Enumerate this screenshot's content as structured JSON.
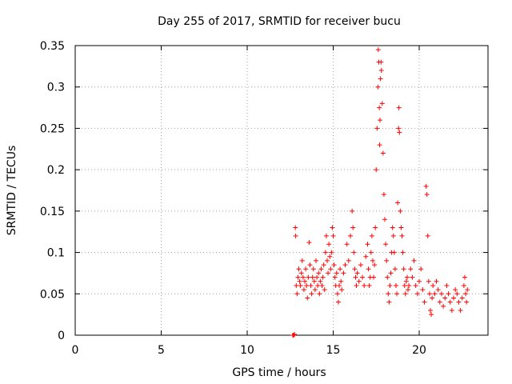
{
  "chart_data": {
    "type": "scatter",
    "title": "Day 255 of 2017, SRMTID for receiver bucu",
    "xlabel": "GPS time / hours",
    "ylabel": "SRMTID / TECUs",
    "xlim": [
      0,
      24
    ],
    "ylim": [
      0,
      0.35
    ],
    "xticks": [
      0,
      5,
      10,
      15,
      20
    ],
    "yticks": [
      0,
      0.05,
      0.1,
      0.15,
      0.2,
      0.25,
      0.3,
      0.35
    ],
    "xtick_labels": [
      "0",
      "5",
      "10",
      "15",
      "20"
    ],
    "ytick_labels": [
      "0",
      "0.05",
      "0.1",
      "0.15",
      "0.2",
      "0.25",
      "0.3",
      "0.35"
    ],
    "grid": true,
    "marker": "+",
    "color": "#ff0000",
    "series": [
      {
        "name": "SRMTID",
        "points": [
          [
            12.65,
            0.0
          ],
          [
            12.7,
            0.0
          ],
          [
            12.75,
            0.001
          ],
          [
            12.8,
            0.13
          ],
          [
            12.82,
            0.12
          ],
          [
            12.85,
            0.06
          ],
          [
            12.9,
            0.05
          ],
          [
            12.95,
            0.07
          ],
          [
            13.0,
            0.08
          ],
          [
            13.05,
            0.065
          ],
          [
            13.1,
            0.06
          ],
          [
            13.15,
            0.075
          ],
          [
            13.2,
            0.09
          ],
          [
            13.25,
            0.07
          ],
          [
            13.3,
            0.055
          ],
          [
            13.35,
            0.065
          ],
          [
            13.4,
            0.08
          ],
          [
            13.45,
            0.06
          ],
          [
            13.5,
            0.045
          ],
          [
            13.55,
            0.07
          ],
          [
            13.6,
            0.112
          ],
          [
            13.65,
            0.085
          ],
          [
            13.7,
            0.06
          ],
          [
            13.75,
            0.05
          ],
          [
            13.8,
            0.07
          ],
          [
            13.85,
            0.08
          ],
          [
            13.9,
            0.065
          ],
          [
            13.95,
            0.055
          ],
          [
            14.0,
            0.09
          ],
          [
            14.05,
            0.07
          ],
          [
            14.1,
            0.06
          ],
          [
            14.15,
            0.075
          ],
          [
            14.2,
            0.05
          ],
          [
            14.25,
            0.065
          ],
          [
            14.3,
            0.08
          ],
          [
            14.35,
            0.06
          ],
          [
            14.4,
            0.07
          ],
          [
            14.45,
            0.085
          ],
          [
            14.5,
            0.055
          ],
          [
            14.55,
            0.1
          ],
          [
            14.6,
            0.12
          ],
          [
            14.65,
            0.09
          ],
          [
            14.7,
            0.075
          ],
          [
            14.75,
            0.11
          ],
          [
            14.8,
            0.095
          ],
          [
            14.85,
            0.08
          ],
          [
            14.9,
            0.1
          ],
          [
            14.95,
            0.13
          ],
          [
            15.0,
            0.12
          ],
          [
            15.05,
            0.085
          ],
          [
            15.1,
            0.07
          ],
          [
            15.15,
            0.06
          ],
          [
            15.2,
            0.075
          ],
          [
            15.25,
            0.05
          ],
          [
            15.3,
            0.04
          ],
          [
            15.35,
            0.06
          ],
          [
            15.4,
            0.08
          ],
          [
            15.45,
            0.065
          ],
          [
            15.5,
            0.055
          ],
          [
            15.6,
            0.075
          ],
          [
            15.7,
            0.085
          ],
          [
            15.8,
            0.11
          ],
          [
            15.9,
            0.09
          ],
          [
            16.0,
            0.12
          ],
          [
            16.1,
            0.15
          ],
          [
            16.15,
            0.13
          ],
          [
            16.2,
            0.1
          ],
          [
            16.25,
            0.08
          ],
          [
            16.3,
            0.07
          ],
          [
            16.35,
            0.06
          ],
          [
            16.4,
            0.075
          ],
          [
            16.5,
            0.065
          ],
          [
            16.6,
            0.085
          ],
          [
            16.7,
            0.07
          ],
          [
            16.8,
            0.06
          ],
          [
            16.9,
            0.095
          ],
          [
            17.0,
            0.11
          ],
          [
            17.05,
            0.08
          ],
          [
            17.1,
            0.06
          ],
          [
            17.15,
            0.07
          ],
          [
            17.2,
            0.1
          ],
          [
            17.25,
            0.12
          ],
          [
            17.3,
            0.09
          ],
          [
            17.35,
            0.07
          ],
          [
            17.4,
            0.085
          ],
          [
            17.45,
            0.13
          ],
          [
            17.5,
            0.2
          ],
          [
            17.55,
            0.25
          ],
          [
            17.6,
            0.3
          ],
          [
            17.62,
            0.345
          ],
          [
            17.65,
            0.33
          ],
          [
            17.68,
            0.275
          ],
          [
            17.7,
            0.23
          ],
          [
            17.72,
            0.26
          ],
          [
            17.75,
            0.31
          ],
          [
            17.78,
            0.33
          ],
          [
            17.8,
            0.32
          ],
          [
            17.85,
            0.28
          ],
          [
            17.9,
            0.22
          ],
          [
            17.95,
            0.17
          ],
          [
            18.0,
            0.14
          ],
          [
            18.05,
            0.11
          ],
          [
            18.1,
            0.09
          ],
          [
            18.15,
            0.07
          ],
          [
            18.2,
            0.05
          ],
          [
            18.25,
            0.04
          ],
          [
            18.3,
            0.06
          ],
          [
            18.35,
            0.075
          ],
          [
            18.4,
            0.1
          ],
          [
            18.45,
            0.13
          ],
          [
            18.5,
            0.12
          ],
          [
            18.55,
            0.1
          ],
          [
            18.6,
            0.08
          ],
          [
            18.65,
            0.06
          ],
          [
            18.7,
            0.05
          ],
          [
            18.75,
            0.16
          ],
          [
            18.8,
            0.25
          ],
          [
            18.82,
            0.275
          ],
          [
            18.85,
            0.245
          ],
          [
            18.9,
            0.15
          ],
          [
            18.95,
            0.13
          ],
          [
            19.0,
            0.12
          ],
          [
            19.05,
            0.1
          ],
          [
            19.1,
            0.08
          ],
          [
            19.15,
            0.06
          ],
          [
            19.2,
            0.05
          ],
          [
            19.25,
            0.065
          ],
          [
            19.3,
            0.07
          ],
          [
            19.35,
            0.055
          ],
          [
            19.4,
            0.06
          ],
          [
            19.5,
            0.08
          ],
          [
            19.6,
            0.07
          ],
          [
            19.7,
            0.09
          ],
          [
            19.8,
            0.06
          ],
          [
            19.9,
            0.05
          ],
          [
            20.0,
            0.065
          ],
          [
            20.1,
            0.08
          ],
          [
            20.2,
            0.055
          ],
          [
            20.3,
            0.04
          ],
          [
            20.4,
            0.18
          ],
          [
            20.45,
            0.17
          ],
          [
            20.5,
            0.12
          ],
          [
            20.55,
            0.065
          ],
          [
            20.6,
            0.05
          ],
          [
            20.65,
            0.03
          ],
          [
            20.7,
            0.025
          ],
          [
            20.75,
            0.045
          ],
          [
            20.8,
            0.06
          ],
          [
            20.9,
            0.05
          ],
          [
            21.0,
            0.065
          ],
          [
            21.1,
            0.055
          ],
          [
            21.2,
            0.04
          ],
          [
            21.3,
            0.05
          ],
          [
            21.4,
            0.035
          ],
          [
            21.5,
            0.045
          ],
          [
            21.6,
            0.06
          ],
          [
            21.7,
            0.05
          ],
          [
            21.8,
            0.04
          ],
          [
            21.9,
            0.03
          ],
          [
            22.0,
            0.045
          ],
          [
            22.1,
            0.055
          ],
          [
            22.2,
            0.05
          ],
          [
            22.3,
            0.04
          ],
          [
            22.4,
            0.03
          ],
          [
            22.5,
            0.045
          ],
          [
            22.6,
            0.06
          ],
          [
            22.65,
            0.07
          ],
          [
            22.7,
            0.05
          ],
          [
            22.75,
            0.04
          ],
          [
            22.8,
            0.055
          ]
        ]
      }
    ]
  }
}
